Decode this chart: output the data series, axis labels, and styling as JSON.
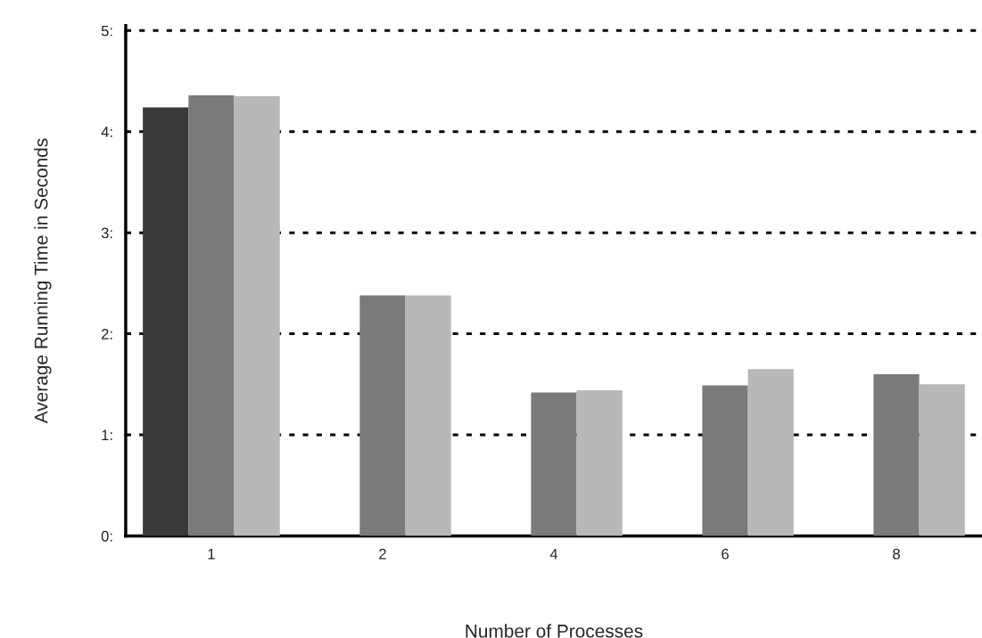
{
  "chart_data": {
    "type": "bar",
    "xlabel": "Number of Processes",
    "ylabel": "Average Running Time in Seconds",
    "categories": [
      "1",
      "2",
      "4",
      "6",
      "8"
    ],
    "series": [
      {
        "color": "#3a3a3a",
        "values": [
          4.24,
          null,
          null,
          null,
          null
        ]
      },
      {
        "color": "#7a7a7a",
        "values": [
          4.36,
          2.38,
          1.42,
          1.49,
          1.6
        ]
      },
      {
        "color": "#b8b8b8",
        "values": [
          4.35,
          2.38,
          1.44,
          1.65,
          1.5
        ]
      }
    ],
    "ylim": [
      0,
      5.05
    ],
    "yticks": [
      {
        "value": 0,
        "label": "0:"
      },
      {
        "value": 1,
        "label": "1:"
      },
      {
        "value": 2,
        "label": "2:"
      },
      {
        "value": 3,
        "label": "3:"
      },
      {
        "value": 4,
        "label": "4:"
      },
      {
        "value": 5,
        "label": "5:"
      }
    ],
    "grid": "y",
    "legend": false
  }
}
